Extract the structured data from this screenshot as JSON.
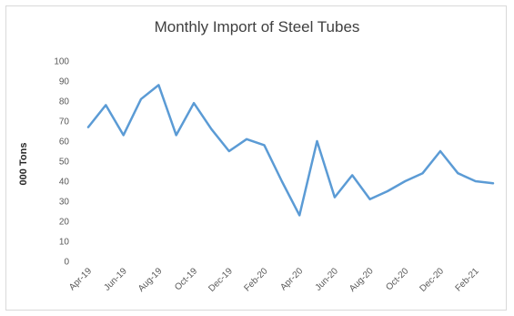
{
  "chart_data": {
    "type": "line",
    "title": "Monthly Import of Steel Tubes",
    "xlabel": "",
    "ylabel": "000 Tons",
    "ylim": [
      0,
      100
    ],
    "yticks": [
      0,
      10,
      20,
      30,
      40,
      50,
      60,
      70,
      80,
      90,
      100
    ],
    "grid": false,
    "legend": "none",
    "x": [
      "Apr-19",
      "May-19",
      "Jun-19",
      "Jul-19",
      "Aug-19",
      "Sep-19",
      "Oct-19",
      "Nov-19",
      "Dec-19",
      "Jan-20",
      "Feb-20",
      "Mar-20",
      "Apr-20",
      "May-20",
      "Jun-20",
      "Jul-20",
      "Aug-20",
      "Sep-20",
      "Oct-20",
      "Nov-20",
      "Dec-20",
      "Jan-21",
      "Feb-21",
      "Mar-21"
    ],
    "xtick_labels": [
      "Apr-19",
      "Jun-19",
      "Aug-19",
      "Oct-19",
      "Dec-19",
      "Feb-20",
      "Apr-20",
      "Jun-20",
      "Aug-20",
      "Oct-20",
      "Dec-20",
      "Feb-21"
    ],
    "series": [
      {
        "values": [
          67,
          78,
          63,
          81,
          88,
          63,
          79,
          66,
          55,
          61,
          58,
          40,
          23,
          60,
          32,
          43,
          31,
          35,
          40,
          44,
          55,
          44,
          40,
          39
        ],
        "color": "#5b9bd5"
      }
    ]
  }
}
